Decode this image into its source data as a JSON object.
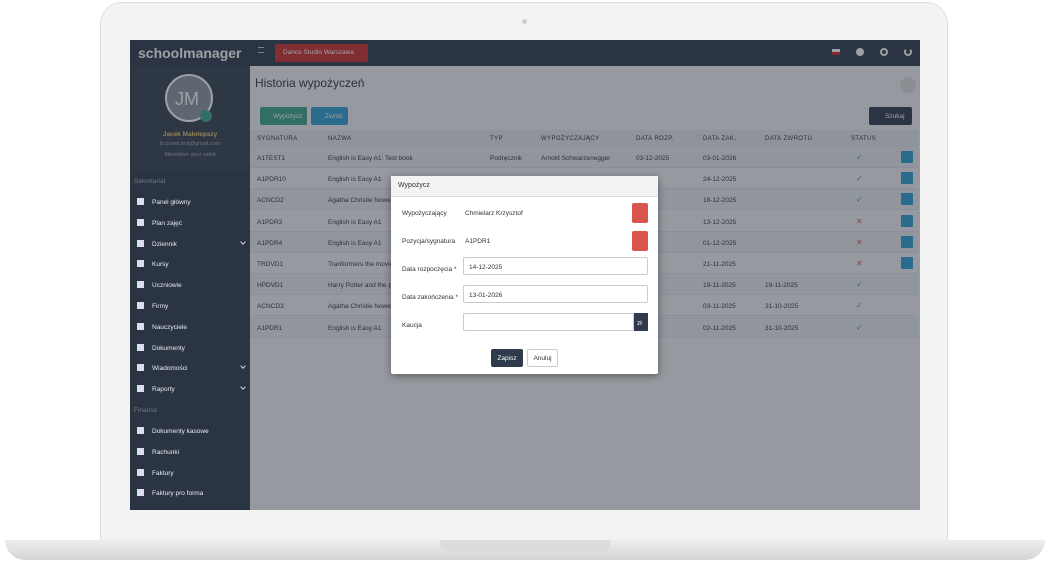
{
  "app": {
    "logo": "schoolmanager",
    "school": "Dance Studio Warszawa"
  },
  "profile": {
    "initials": "JM",
    "name": "Jacek Małolepszy",
    "email": "b.crowd.test@gmail.com",
    "role": "Menedżer sieci szkół"
  },
  "sidebar": {
    "sections": [
      {
        "title": "Sekretariat",
        "items": [
          {
            "label": "Panel główny"
          },
          {
            "label": "Plan zajęć"
          },
          {
            "label": "Dziennik",
            "expandable": true
          },
          {
            "label": "Kursy"
          },
          {
            "label": "Uczniowie"
          },
          {
            "label": "Firmy"
          },
          {
            "label": "Nauczyciele"
          },
          {
            "label": "Dokumenty"
          },
          {
            "label": "Wiadomości",
            "expandable": true
          },
          {
            "label": "Raporty",
            "expandable": true
          }
        ]
      },
      {
        "title": "Finanse",
        "items": [
          {
            "label": "Dokumenty kasowe"
          },
          {
            "label": "Rachunki"
          },
          {
            "label": "Faktury"
          },
          {
            "label": "Faktury pro forma"
          }
        ]
      }
    ]
  },
  "page": {
    "title": "Historia wypożyczeń",
    "buttons": [
      "Wypożycz",
      "Zwróć"
    ],
    "search": "Szukaj"
  },
  "table": {
    "headers": [
      "SYGNATURA",
      "NAZWA",
      "TYP",
      "WYPOŻYCZAJĄCY",
      "DATA ROZP.",
      "DATA ZAK.",
      "DATA ZWROTU",
      "STATUS"
    ],
    "rows": [
      [
        "A1TEST1",
        "English is Easy A1: Test book",
        "Podręcznik",
        "Arnold Schwarzenegger",
        "03-12-2025",
        "03-01-2026",
        null,
        "✓"
      ],
      [
        "A1PDR10",
        "English is Easy A1",
        null,
        null,
        null,
        "24-12-2025",
        null,
        "✓"
      ],
      [
        "ACNCD2",
        "Agatha Christie Nowela",
        null,
        null,
        null,
        "18-12-2025",
        null,
        "✓"
      ],
      [
        "A1PDR3",
        "English is Easy A1",
        null,
        null,
        null,
        "13-12-2025",
        null,
        "✕"
      ],
      [
        "A1PDR4",
        "English is Easy A1",
        null,
        null,
        null,
        "01-12-2025",
        null,
        "✕"
      ],
      [
        "TRDVD1",
        "Tranformers the movie",
        null,
        null,
        null,
        "21-11-2025",
        null,
        "✕"
      ],
      [
        "HPDVD1",
        "Harry Potter and the ph",
        null,
        null,
        null,
        "19-11-2025",
        "19-11-2025",
        "✓"
      ],
      [
        "ACNCD3",
        "Agatha Christie Nowela",
        null,
        null,
        null,
        "03-11-2025",
        "31-10-2025",
        "✓"
      ],
      [
        "A1PDR1",
        "English is Easy A1",
        null,
        null,
        null,
        "02-11-2025",
        "31-10-2025",
        "✓"
      ]
    ]
  },
  "modal": {
    "title": "Wypożycz",
    "fields": [
      {
        "label": "Wypożyczający",
        "value": "Chmielarz Krzysztof",
        "kind": "text"
      },
      {
        "label": "Pozycja/sygnatura",
        "value": "A1PDR1",
        "kind": "text"
      },
      {
        "label": "Data rozpoczęcia *",
        "value": "14-12-2025",
        "kind": "input"
      },
      {
        "label": "Data zakończenia *",
        "value": "13-01-2026",
        "kind": "input"
      },
      {
        "label": "Kaucja",
        "value": null,
        "kind": "input",
        "addon": "zł"
      }
    ],
    "save": "Zapisz",
    "cancel": "Anuluj"
  }
}
